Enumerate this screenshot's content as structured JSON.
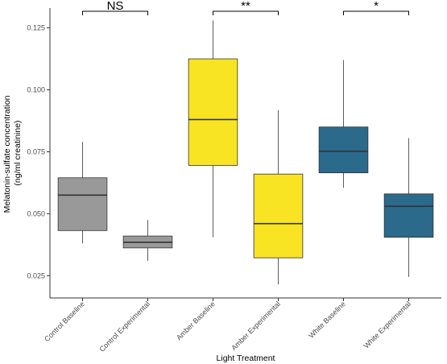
{
  "chart_data": {
    "type": "box",
    "xlabel": "Light Treatment",
    "ylabel_lines": [
      "Melatonin-sulfate concentration",
      "(ng/ml creatinine)"
    ],
    "ylim": [
      0.016,
      0.133
    ],
    "yticks": [
      0.025,
      0.05,
      0.075,
      0.1,
      0.125
    ],
    "ytick_labels": [
      "0.025",
      "0.050",
      "0.075",
      "0.100",
      "0.125"
    ],
    "grid": false,
    "categories": [
      "Control Baseline",
      "Control Experimental",
      "Amber Baseline",
      "Amber Experimental",
      "White Baseline",
      "White Experimental"
    ],
    "boxes": [
      {
        "category": "Control Baseline",
        "min": 0.038,
        "q1": 0.0432,
        "median": 0.0575,
        "q3": 0.0645,
        "max": 0.079,
        "color": "#999999"
      },
      {
        "category": "Control Experimental",
        "min": 0.031,
        "q1": 0.0362,
        "median": 0.0385,
        "q3": 0.041,
        "max": 0.0475,
        "color": "#999999"
      },
      {
        "category": "Amber Baseline",
        "min": 0.0405,
        "q1": 0.0695,
        "median": 0.088,
        "q3": 0.1125,
        "max": 0.128,
        "color": "#f8e423"
      },
      {
        "category": "Amber Experimental",
        "min": 0.0215,
        "q1": 0.0322,
        "median": 0.046,
        "q3": 0.066,
        "max": 0.0918,
        "color": "#f8e423"
      },
      {
        "category": "White Baseline",
        "min": 0.0605,
        "q1": 0.0665,
        "median": 0.0752,
        "q3": 0.085,
        "max": 0.112,
        "color": "#2b6a8a"
      },
      {
        "category": "White Experimental",
        "min": 0.0245,
        "q1": 0.0405,
        "median": 0.053,
        "q3": 0.058,
        "max": 0.0805,
        "color": "#2b6a8a"
      }
    ],
    "significance": [
      {
        "from": "Control Baseline",
        "to": "Control Experimental",
        "label": "NS"
      },
      {
        "from": "Amber Baseline",
        "to": "Amber Experimental",
        "label": "**"
      },
      {
        "from": "White Baseline",
        "to": "White Experimental",
        "label": "*"
      }
    ]
  }
}
